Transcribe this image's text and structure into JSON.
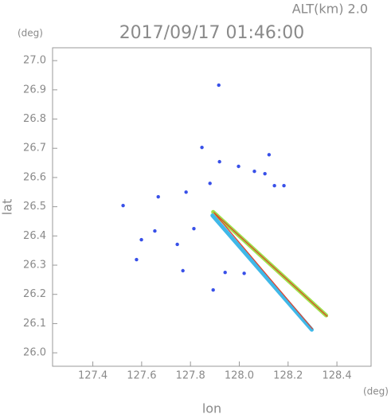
{
  "chart_data": {
    "type": "scatter",
    "title": "2017/09/17 01:46:00",
    "subtitle": "ALT(km) 2.0",
    "x_label": "lon",
    "y_label": "lat",
    "x_unit": "(deg)",
    "y_unit": "(deg)",
    "xlim": [
      127.235,
      128.54
    ],
    "ylim": [
      25.954,
      27.044
    ],
    "xticks": [
      127.4,
      127.6,
      127.8,
      {
        "value": 128.0,
        "label": "128.0"
      },
      128.2,
      128.4
    ],
    "yticks": [
      {
        "value": 26.0,
        "label": "26.0"
      },
      26.1,
      26.2,
      26.3,
      26.4,
      26.5,
      26.6,
      26.7,
      26.8,
      26.9,
      {
        "value": 27.0,
        "label": "27.0"
      }
    ],
    "series": [
      {
        "type": "scatter",
        "color": "#3850e8",
        "x": [
          127.916,
          127.524,
          127.668,
          127.782,
          127.579,
          127.769,
          127.814,
          127.88,
          127.919,
          128.122,
          127.997,
          128.062,
          128.144,
          128.183,
          127.942,
          128.02,
          127.654,
          127.599,
          127.746,
          127.893,
          127.847,
          128.105
        ],
        "y": [
          26.916,
          26.504,
          26.534,
          26.55,
          26.319,
          26.281,
          26.425,
          26.58,
          26.654,
          26.678,
          26.638,
          26.621,
          26.572,
          26.572,
          26.275,
          26.272,
          26.417,
          26.387,
          26.371,
          26.215,
          26.703,
          26.613
        ]
      },
      {
        "type": "line",
        "color": "#9ee04a",
        "x": [
          127.893,
          128.356
        ],
        "y": [
          26.482,
          26.128
        ]
      },
      {
        "type": "line",
        "color": "#40b8e8",
        "x": [
          127.89,
          128.297
        ],
        "y": [
          26.47,
          26.079
        ]
      },
      {
        "type": "line",
        "color": "#e0402a",
        "x": [
          127.896,
          128.36
        ],
        "y": [
          26.48,
          26.125
        ]
      },
      {
        "type": "line",
        "color": "#e0402a",
        "x": [
          127.9,
          128.3
        ],
        "y": [
          26.476,
          26.082
        ]
      }
    ]
  }
}
